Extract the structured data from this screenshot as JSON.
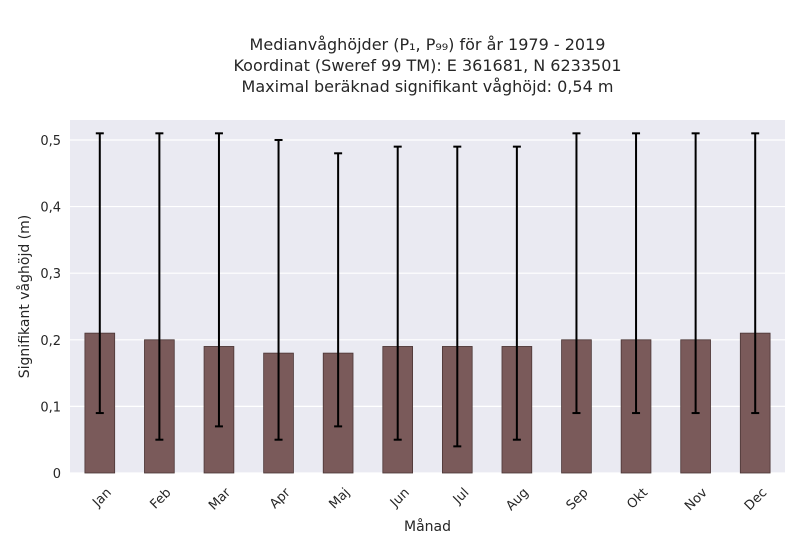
{
  "chart_data": {
    "type": "bar",
    "title_lines": [
      "Medianvåghöjder (P₁, P₉₉) för år 1979 - 2019",
      "Koordinat (Sweref 99 TM): E 361681, N 6233501",
      "Maximal beräknad signifikant våghöjd: 0,54 m"
    ],
    "xlabel": "Månad",
    "ylabel": "Signifikant våghöjd (m)",
    "categories": [
      "Jan",
      "Feb",
      "Mar",
      "Apr",
      "Maj",
      "Jun",
      "Jul",
      "Aug",
      "Sep",
      "Okt",
      "Nov",
      "Dec"
    ],
    "values": [
      0.21,
      0.2,
      0.19,
      0.18,
      0.18,
      0.19,
      0.19,
      0.19,
      0.2,
      0.2,
      0.2,
      0.21
    ],
    "error_low": [
      0.09,
      0.05,
      0.07,
      0.05,
      0.07,
      0.05,
      0.04,
      0.05,
      0.09,
      0.09,
      0.09,
      0.09
    ],
    "error_high": [
      0.51,
      0.51,
      0.51,
      0.5,
      0.48,
      0.49,
      0.49,
      0.49,
      0.51,
      0.51,
      0.51,
      0.51
    ],
    "ylim": [
      0,
      0.53
    ],
    "yticks": [
      0,
      0.1,
      0.2,
      0.3,
      0.4,
      0.5
    ],
    "ytick_labels": [
      "0",
      "0,1",
      "0,2",
      "0,3",
      "0,4",
      "0,5"
    ],
    "grid": true,
    "colors": {
      "bar": "#7a5a5a",
      "bar_edge": "#4a3535",
      "error": "#000000",
      "background": "#eaeaf2",
      "grid": "#ffffff"
    }
  }
}
